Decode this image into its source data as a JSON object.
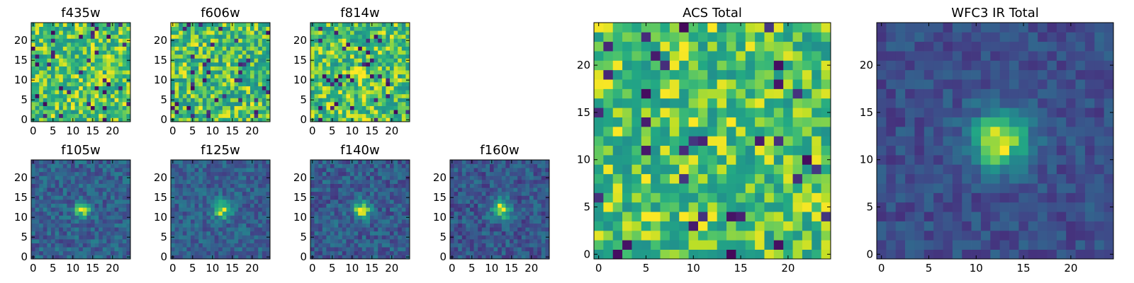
{
  "chart_data": [
    {
      "type": "heatmap",
      "title": "f435w",
      "colormap": "viridis",
      "grid_size": [
        25,
        25
      ],
      "xlim": [
        0,
        24
      ],
      "ylim": [
        0,
        24
      ],
      "x_ticks": [
        0,
        5,
        10,
        15,
        20
      ],
      "y_ticks": [
        0,
        5,
        10,
        15,
        20
      ],
      "source": {
        "kind": "noise",
        "seed": 11,
        "floor": 0.62
      }
    },
    {
      "type": "heatmap",
      "title": "f606w",
      "colormap": "viridis",
      "grid_size": [
        25,
        25
      ],
      "xlim": [
        0,
        24
      ],
      "ylim": [
        0,
        24
      ],
      "x_ticks": [
        0,
        5,
        10,
        15,
        20
      ],
      "y_ticks": [
        0,
        5,
        10,
        15,
        20
      ],
      "source": {
        "kind": "noise",
        "seed": 23,
        "floor": 0.58
      }
    },
    {
      "type": "heatmap",
      "title": "f814w",
      "colormap": "viridis",
      "grid_size": [
        25,
        25
      ],
      "xlim": [
        0,
        24
      ],
      "ylim": [
        0,
        24
      ],
      "x_ticks": [
        0,
        5,
        10,
        15,
        20
      ],
      "y_ticks": [
        0,
        5,
        10,
        15,
        20
      ],
      "source": {
        "kind": "noise",
        "seed": 37,
        "floor": 0.6,
        "peak": {
          "x": 12,
          "y": 11,
          "sigma": 1.1,
          "amp": 0.35
        }
      }
    },
    {
      "type": "heatmap",
      "title": "f105w",
      "colormap": "viridis",
      "grid_size": [
        25,
        25
      ],
      "xlim": [
        0,
        24
      ],
      "ylim": [
        0,
        24
      ],
      "x_ticks": [
        0,
        5,
        10,
        15,
        20
      ],
      "y_ticks": [
        0,
        5,
        10,
        15,
        20
      ],
      "source": {
        "kind": "source",
        "seed": 41,
        "background": 0.38,
        "noise": 0.17,
        "peak": {
          "x": 12.5,
          "y": 12,
          "sigma": 1.4,
          "amp": 0.62
        }
      }
    },
    {
      "type": "heatmap",
      "title": "f125w",
      "colormap": "viridis",
      "grid_size": [
        25,
        25
      ],
      "xlim": [
        0,
        24
      ],
      "ylim": [
        0,
        24
      ],
      "x_ticks": [
        0,
        5,
        10,
        15,
        20
      ],
      "y_ticks": [
        0,
        5,
        10,
        15,
        20
      ],
      "source": {
        "kind": "source",
        "seed": 53,
        "background": 0.38,
        "noise": 0.16,
        "peak": {
          "x": 12.5,
          "y": 12,
          "sigma": 1.6,
          "amp": 0.6
        }
      }
    },
    {
      "type": "heatmap",
      "title": "f140w",
      "colormap": "viridis",
      "grid_size": [
        25,
        25
      ],
      "xlim": [
        0,
        24
      ],
      "ylim": [
        0,
        24
      ],
      "x_ticks": [
        0,
        5,
        10,
        15,
        20
      ],
      "y_ticks": [
        0,
        5,
        10,
        15,
        20
      ],
      "source": {
        "kind": "source",
        "seed": 67,
        "background": 0.36,
        "noise": 0.17,
        "peak": {
          "x": 12.5,
          "y": 12,
          "sigma": 1.6,
          "amp": 0.62
        }
      }
    },
    {
      "type": "heatmap",
      "title": "f160w",
      "colormap": "viridis",
      "grid_size": [
        25,
        25
      ],
      "xlim": [
        0,
        24
      ],
      "ylim": [
        0,
        24
      ],
      "x_ticks": [
        0,
        5,
        10,
        15,
        20
      ],
      "y_ticks": [
        0,
        5,
        10,
        15,
        20
      ],
      "source": {
        "kind": "source",
        "seed": 79,
        "background": 0.34,
        "noise": 0.17,
        "peak": {
          "x": 12.5,
          "y": 12,
          "sigma": 1.8,
          "amp": 0.62
        }
      }
    },
    {
      "type": "heatmap",
      "title": "ACS Total",
      "colormap": "viridis",
      "grid_size": [
        25,
        25
      ],
      "xlim": [
        0,
        24
      ],
      "ylim": [
        0,
        24
      ],
      "x_ticks": [
        0,
        5,
        10,
        15,
        20
      ],
      "y_ticks": [
        0,
        5,
        10,
        15,
        20
      ],
      "source": {
        "kind": "noise",
        "seed": 97,
        "floor": 0.62
      }
    },
    {
      "type": "heatmap",
      "title": "WFC3 IR Total",
      "colormap": "viridis",
      "grid_size": [
        25,
        25
      ],
      "xlim": [
        0,
        24
      ],
      "ylim": [
        0,
        24
      ],
      "x_ticks": [
        0,
        5,
        10,
        15,
        20
      ],
      "y_ticks": [
        0,
        5,
        10,
        15,
        20
      ],
      "source": {
        "kind": "source",
        "seed": 113,
        "background": 0.3,
        "noise": 0.12,
        "peak": {
          "x": 12.5,
          "y": 12,
          "sigma": 2.2,
          "amp": 0.72
        }
      }
    }
  ]
}
